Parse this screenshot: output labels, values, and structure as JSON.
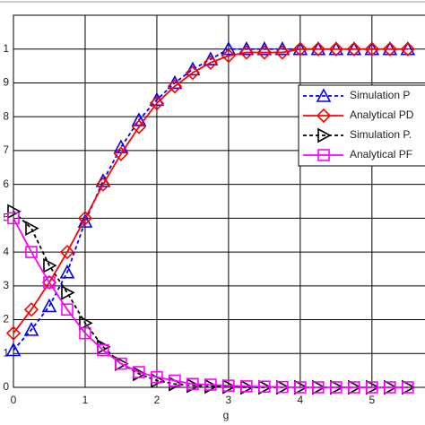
{
  "chart_data": {
    "type": "line",
    "xlabel": "g",
    "x": [
      0,
      0.25,
      0.5,
      0.75,
      1,
      1.25,
      1.5,
      1.75,
      2,
      2.25,
      2.5,
      2.75,
      3,
      3.25,
      3.5,
      3.75,
      4,
      4.25,
      4.5,
      4.75,
      5,
      5.25,
      5.5
    ],
    "xlim": [
      0,
      5.74
    ],
    "xticks": [
      0,
      1,
      2,
      3,
      4,
      5
    ],
    "ylim": [
      0,
      1.1
    ],
    "yticks": [
      0,
      {
        "value": 0.1,
        "label": "1"
      },
      {
        "value": 0.2,
        "label": "2"
      },
      {
        "value": 0.3,
        "label": "3"
      },
      {
        "value": 0.4,
        "label": "4"
      },
      {
        "value": 0.5,
        "label": "5"
      },
      {
        "value": 0.6,
        "label": "6"
      },
      {
        "value": 0.7,
        "label": "7"
      },
      {
        "value": 0.8,
        "label": "8"
      },
      {
        "value": 0.9,
        "label": "9"
      },
      1
    ],
    "grid": true,
    "legend_position": "upper right",
    "series": [
      {
        "name": "Simulation P",
        "color": "#0000ff",
        "marker": "triangle-up",
        "linestyle": "dashed",
        "values": [
          0.11,
          0.17,
          0.24,
          0.34,
          0.49,
          0.61,
          0.71,
          0.79,
          0.85,
          0.9,
          0.94,
          0.97,
          1.0,
          1.0,
          1.0,
          1.0,
          1.0,
          1.0,
          1.0,
          1.0,
          1.0,
          1.0,
          1.0
        ]
      },
      {
        "name": "Analytical PD",
        "color": "#ff0000",
        "marker": "diamond",
        "linestyle": "solid",
        "values": [
          0.16,
          0.23,
          0.31,
          0.4,
          0.5,
          0.6,
          0.69,
          0.77,
          0.84,
          0.89,
          0.93,
          0.96,
          0.98,
          0.99,
          0.99,
          0.99,
          1.0,
          1.0,
          1.0,
          1.0,
          1.0,
          1.0,
          1.0
        ]
      },
      {
        "name": "Simulation P.",
        "color": "#000000",
        "marker": "triangle-right",
        "linestyle": "dashed",
        "values": [
          0.52,
          0.47,
          0.36,
          0.28,
          0.19,
          0.12,
          0.07,
          0.04,
          0.02,
          0.01,
          0.005,
          0.003,
          0.002,
          0,
          0,
          0,
          0,
          0,
          0,
          0,
          0,
          0,
          0
        ]
      },
      {
        "name": "Analytical PF",
        "color": "#ff00ff",
        "marker": "square",
        "linestyle": "solid",
        "values": [
          0.5,
          0.4,
          0.31,
          0.23,
          0.16,
          0.11,
          0.07,
          0.045,
          0.03,
          0.02,
          0.01,
          0.008,
          0.005,
          0.003,
          0.002,
          0.001,
          0,
          0,
          0,
          0,
          0,
          0,
          0
        ]
      }
    ]
  }
}
